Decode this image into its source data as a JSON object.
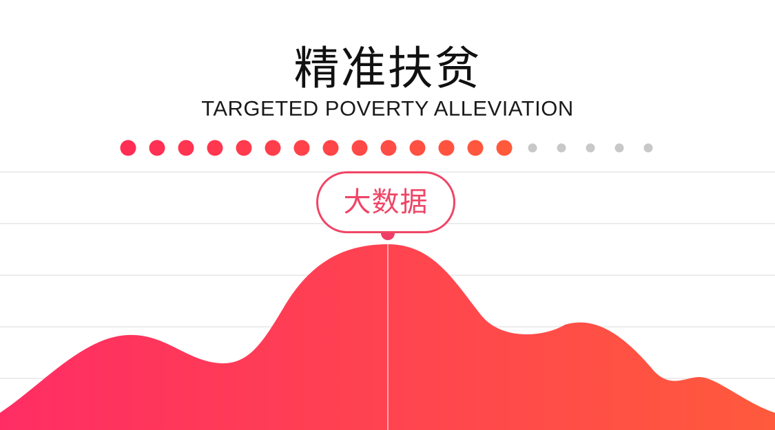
{
  "title": "精准扶贫",
  "subtitle": "TARGETED POVERTY ALLEVIATION",
  "badge_label": "大数据",
  "progress": {
    "filled": 14,
    "total": 19,
    "filled_color_start": "#ff2d55",
    "filled_color_end": "#ff5a3c",
    "empty_color": "#c8c8c8"
  },
  "colors": {
    "gradient_start": "#ff2d64",
    "gradient_end": "#ff5a3c",
    "accent": "#ef4566",
    "gridline": "#e6e6e6"
  }
}
